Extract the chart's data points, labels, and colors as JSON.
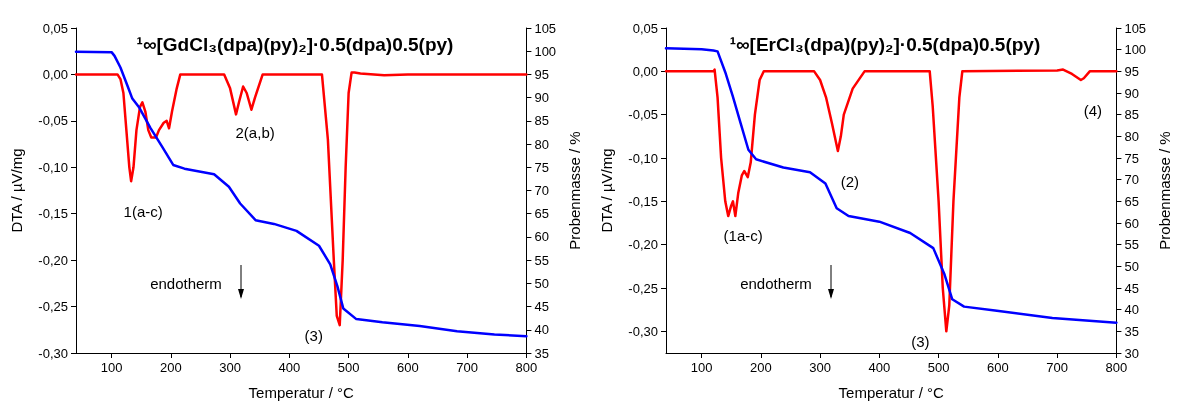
{
  "chart_data": [
    {
      "type": "line",
      "title": "¹∞[GdCl₃(dpa)(py)₂]·0.5(dpa)0.5(py)",
      "xlabel": "Temperatur / °C",
      "ylabel": "DTA / µV/mg",
      "y2label": "Probenmasse / %",
      "xlim": [
        40,
        800
      ],
      "xticks": [
        100,
        200,
        300,
        400,
        500,
        600,
        700,
        800
      ],
      "ylim": [
        -0.3,
        0.05
      ],
      "yticks": [
        {
          "value": -0.3,
          "label": "-0,30"
        },
        {
          "value": -0.25,
          "label": "-0,25"
        },
        {
          "value": -0.2,
          "label": "-0,20"
        },
        {
          "value": -0.15,
          "label": "-0,15"
        },
        {
          "value": -0.1,
          "label": "-0,10"
        },
        {
          "value": -0.05,
          "label": "-0,05"
        },
        {
          "value": 0,
          "label": "0,00"
        },
        {
          "value": 0.05,
          "label": "0,05"
        }
      ],
      "y2lim": [
        35,
        105
      ],
      "y2ticks": [
        35,
        40,
        45,
        50,
        55,
        60,
        65,
        70,
        75,
        80,
        85,
        90,
        95,
        100,
        105
      ],
      "marker": "none",
      "line_style": "solid",
      "series": [
        {
          "color": "#ff0000",
          "x": [
            40,
            110,
            115,
            120,
            125,
            130,
            133,
            137,
            142,
            148,
            152,
            157,
            162,
            167,
            175,
            180,
            188,
            193,
            197,
            202,
            210,
            216,
            290,
            300,
            310,
            315,
            322,
            328,
            336,
            342,
            355,
            455,
            465,
            475,
            480,
            485,
            490,
            495,
            500,
            505,
            510,
            520,
            560,
            600,
            800
          ],
          "values": [
            0,
            0,
            -0.005,
            -0.02,
            -0.06,
            -0.1,
            -0.115,
            -0.1,
            -0.06,
            -0.035,
            -0.03,
            -0.04,
            -0.06,
            -0.068,
            -0.068,
            -0.06,
            -0.052,
            -0.05,
            -0.058,
            -0.04,
            -0.015,
            0,
            0,
            -0.015,
            -0.043,
            -0.03,
            -0.013,
            -0.02,
            -0.038,
            -0.025,
            0,
            0,
            -0.07,
            -0.2,
            -0.26,
            -0.27,
            -0.2,
            -0.1,
            -0.02,
            0.002,
            0.002,
            0.001,
            -0.001,
            0,
            0
          ]
        },
        {
          "color": "#0000ff",
          "axis": "y2",
          "x": [
            40,
            100,
            105,
            115,
            127,
            135,
            147,
            166,
            185,
            204,
            223,
            273,
            298,
            317,
            343,
            374,
            412,
            450,
            469,
            481,
            491,
            513,
            557,
            620,
            683,
            746,
            800
          ],
          "values": [
            99.9,
            99.8,
            99,
            96.5,
            92.5,
            89.8,
            87.8,
            83.4,
            79.5,
            75.5,
            74.7,
            73.5,
            70.8,
            67.2,
            63.6,
            62.8,
            61.3,
            58.1,
            54.1,
            49.4,
            44.6,
            42.3,
            41.6,
            40.8,
            39.7,
            39,
            38.6
          ]
        }
      ],
      "annotations": [
        {
          "text": "1(a-c)",
          "x": 133,
          "y": -0.115
        },
        {
          "text": "2(a,b)",
          "x": 322,
          "y": -0.03
        },
        {
          "text": "(3)",
          "x": 485,
          "y": -0.27
        },
        "endotherm"
      ]
    },
    {
      "type": "line",
      "title": "¹∞[ErCl₃(dpa)(py)₂]·0.5(dpa)0.5(py)",
      "xlabel": "Temperatur / °C",
      "ylabel": "DTA / µV/mg",
      "y2label": "Probenmasse / %",
      "xlim": [
        40,
        800
      ],
      "xticks": [
        100,
        200,
        300,
        400,
        500,
        600,
        700,
        800
      ],
      "ylim": [
        -0.325,
        0.05
      ],
      "yticks": [
        {
          "value": -0.3,
          "label": "-0,30"
        },
        {
          "value": -0.25,
          "label": "-0,25"
        },
        {
          "value": -0.2,
          "label": "-0,20"
        },
        {
          "value": -0.15,
          "label": "-0,15"
        },
        {
          "value": -0.1,
          "label": "-0,10"
        },
        {
          "value": -0.05,
          "label": "-0,05"
        },
        {
          "value": 0,
          "label": "0,00"
        },
        {
          "value": 0.05,
          "label": "0,05"
        }
      ],
      "y2lim": [
        30,
        105
      ],
      "y2ticks": [
        30,
        35,
        40,
        45,
        50,
        55,
        60,
        65,
        70,
        75,
        80,
        85,
        90,
        95,
        100,
        105
      ],
      "marker": "none",
      "line_style": "solid",
      "series": [
        {
          "color": "#ff0000",
          "x": [
            40,
            120,
            122,
            127,
            133,
            140,
            145,
            150,
            153,
            157,
            162,
            168,
            172,
            178,
            183,
            190,
            198,
            205,
            290,
            300,
            310,
            320,
            330,
            335,
            340,
            355,
            375,
            485,
            490,
            500,
            507,
            513,
            518,
            525,
            535,
            540,
            700,
            710,
            725,
            740,
            745,
            755,
            800
          ],
          "values": [
            0,
            0,
            0.002,
            -0.03,
            -0.1,
            -0.15,
            -0.167,
            -0.155,
            -0.15,
            -0.167,
            -0.14,
            -0.12,
            -0.115,
            -0.122,
            -0.105,
            -0.05,
            -0.01,
            0,
            0,
            -0.01,
            -0.03,
            -0.06,
            -0.092,
            -0.075,
            -0.05,
            -0.02,
            0,
            0,
            -0.04,
            -0.15,
            -0.25,
            -0.3,
            -0.27,
            -0.15,
            -0.03,
            0,
            0.001,
            0.002,
            -0.003,
            -0.01,
            -0.008,
            0,
            0
          ]
        },
        {
          "color": "#0000ff",
          "axis": "y2",
          "x": [
            40,
            100,
            120,
            127,
            140,
            153,
            166,
            179,
            192,
            238,
            283,
            309,
            328,
            348,
            400,
            452,
            491,
            510,
            523,
            543,
            595,
            692,
            800
          ],
          "values": [
            100.3,
            100.1,
            99.8,
            99.6,
            94.8,
            89.1,
            83,
            76.9,
            74.7,
            72.8,
            71.7,
            69.1,
            63.4,
            61.6,
            60.3,
            57.7,
            54.2,
            48.1,
            42.4,
            40.7,
            39.8,
            38.1,
            37
          ]
        }
      ],
      "annotations": [
        {
          "text": "(1a-c)",
          "x": 150,
          "y": -0.155
        },
        {
          "text": "(2)",
          "x": 330,
          "y": -0.092
        },
        {
          "text": "(3)",
          "x": 513,
          "y": -0.3
        },
        {
          "text": "(4)",
          "x": 740,
          "y": -0.01
        },
        "endotherm"
      ]
    }
  ]
}
